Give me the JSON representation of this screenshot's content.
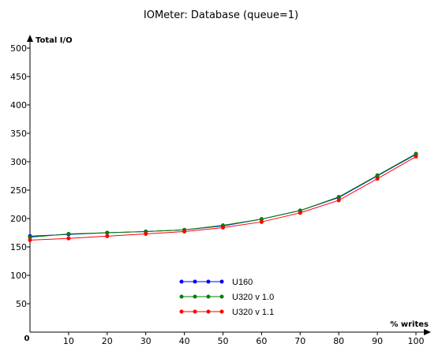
{
  "chart_data": {
    "type": "line",
    "title": "IOMeter: Database (queue=1)",
    "xlabel": "% writes",
    "ylabel": "Total I/O",
    "origin_label": "0",
    "x": [
      0,
      10,
      20,
      30,
      40,
      50,
      60,
      70,
      80,
      90,
      100
    ],
    "xlim": [
      0,
      100
    ],
    "ylim": [
      0,
      500
    ],
    "xticks": [
      "10",
      "20",
      "30",
      "40",
      "50",
      "60",
      "70",
      "80",
      "90",
      "100"
    ],
    "yticks": [
      "50",
      "100",
      "150",
      "200",
      "250",
      "300",
      "350",
      "400",
      "450",
      "500"
    ],
    "grid": false,
    "legend_placement": "lower-center",
    "series": [
      {
        "name": "U160",
        "color": "#0000ff",
        "values": [
          169,
          172,
          175,
          177,
          180,
          187,
          199,
          214,
          237,
          275,
          313
        ]
      },
      {
        "name": "U320 v 1.0",
        "color": "#008000",
        "values": [
          167,
          173,
          175,
          177,
          180,
          188,
          199,
          214,
          238,
          276,
          314
        ]
      },
      {
        "name": "U320 v 1.1",
        "color": "#ff0000",
        "values": [
          162,
          165,
          169,
          173,
          177,
          184,
          194,
          210,
          232,
          270,
          309
        ]
      }
    ]
  }
}
